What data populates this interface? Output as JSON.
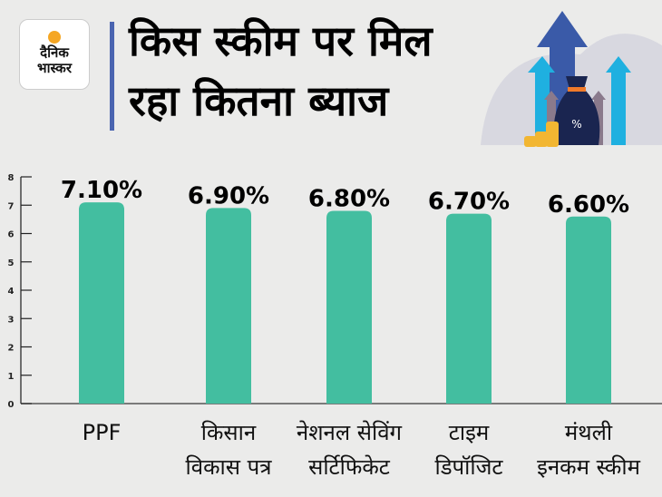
{
  "header": {
    "logo_text": [
      "दैनिक",
      "भास्कर"
    ],
    "title": "किस स्कीम पर मिल रहा कितना ब्याज"
  },
  "colors": {
    "bar": "#43bea0",
    "accent_line": "#4a64b0",
    "background": "#ebebea"
  },
  "chart_data": {
    "type": "bar",
    "categories": [
      "PPF",
      "किसान विकास पत्र",
      "नेशनल सेविंग सर्टिफिकेट",
      "टाइम डिपॉजिट",
      "मंथली इनकम स्कीम"
    ],
    "category_lines": [
      [
        "PPF"
      ],
      [
        "किसान",
        "विकास पत्र"
      ],
      [
        "नेशनल सेविंग",
        "सर्टिफिकेट"
      ],
      [
        "टाइम",
        "डिपॉजिट"
      ],
      [
        "मंथली",
        "इनकम स्कीम"
      ]
    ],
    "values": [
      7.1,
      6.9,
      6.8,
      6.7,
      6.6
    ],
    "data_labels": [
      "7.10%",
      "6.90%",
      "6.80%",
      "6.70%",
      "6.60%"
    ],
    "ylim": [
      0,
      8
    ],
    "yticks": [
      "0",
      "1",
      "2",
      "3",
      "4",
      "5",
      "6",
      "7",
      "8"
    ],
    "title": "किस स्कीम पर मिल रहा कितना ब्याज",
    "xlabel": "",
    "ylabel": "",
    "grid": false
  }
}
